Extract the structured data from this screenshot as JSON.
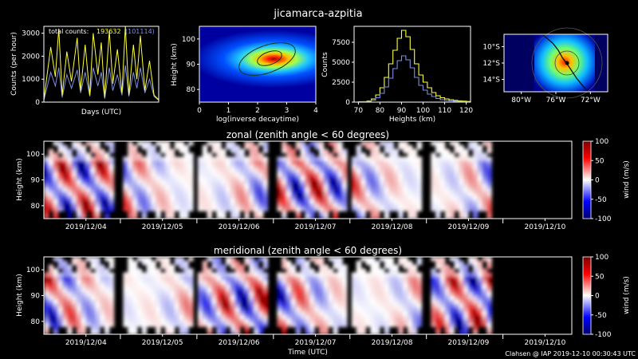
{
  "title": "jicamarca-azpitia",
  "footer": "Clahsen @ IAP 2019-12-10 00:30:43 UTC",
  "colors": {
    "background": "#000000",
    "axis": "#ffffff",
    "series_a": "#ffff3a",
    "series_b": "#7d8ee0",
    "yellow_line": "#ffff3a",
    "blue_line": "#7d8ee0"
  },
  "chart_data": [
    {
      "id": "counts",
      "type": "line",
      "xlabel": "Days (UTC)",
      "ylabel": "Counts (per hour)",
      "ylim": [
        0,
        3300
      ],
      "yticks": [
        "0",
        "1000",
        "2000",
        "3000"
      ],
      "annotation": {
        "label": "total counts:",
        "value_a": "193632",
        "value_b": "(101114)"
      },
      "series": [
        {
          "color": "#ffff3a",
          "x": [
            0,
            0.6,
            1,
            1.3,
            1.6,
            2,
            2.4,
            2.9,
            3.2,
            3.6,
            4,
            4.3,
            4.7,
            5,
            5.3,
            5.7,
            6,
            6.4,
            6.8,
            7.1,
            7.4,
            7.8,
            8.1,
            8.4,
            8.8,
            9.2,
            9.6,
            10
          ],
          "y": [
            100,
            2400,
            1100,
            3200,
            300,
            2200,
            900,
            2800,
            500,
            2500,
            300,
            3000,
            1200,
            2600,
            200,
            3100,
            800,
            2300,
            400,
            3300,
            300,
            2500,
            1000,
            2900,
            500,
            1800,
            300,
            100
          ]
        },
        {
          "color": "#7d8ee0",
          "x": [
            0,
            0.6,
            1,
            1.3,
            1.6,
            2,
            2.4,
            2.9,
            3.2,
            3.6,
            4,
            4.3,
            4.7,
            5,
            5.3,
            5.7,
            6,
            6.4,
            6.8,
            7.1,
            7.4,
            7.8,
            8.1,
            8.4,
            8.8,
            9.2,
            9.6,
            10
          ],
          "y": [
            80,
            1300,
            700,
            1500,
            200,
            1200,
            600,
            1400,
            400,
            1300,
            250,
            1500,
            700,
            1300,
            150,
            1500,
            500,
            1200,
            300,
            1600,
            250,
            1300,
            600,
            1500,
            400,
            1000,
            250,
            80
          ]
        }
      ]
    },
    {
      "id": "decay",
      "type": "heatmap",
      "xlabel": "log(inverse decaytime)",
      "ylabel": "Height (km)",
      "xlim": [
        0,
        4
      ],
      "ylim": [
        75,
        105
      ],
      "xticks": [
        "0",
        "1",
        "2",
        "3",
        "4"
      ],
      "yticks": [
        "80",
        "90",
        "100"
      ],
      "peak": {
        "x": 2.6,
        "y": 91
      }
    },
    {
      "id": "hist",
      "type": "line",
      "xlabel": "Heights (km)",
      "ylabel": "Counts",
      "xlim": [
        68,
        122
      ],
      "ylim": [
        0,
        9500
      ],
      "xticks": [
        "70",
        "80",
        "90",
        "100",
        "110",
        "120"
      ],
      "yticks": [
        "0",
        "2500",
        "5000",
        "7500"
      ],
      "bins": [
        70,
        72,
        74,
        76,
        78,
        80,
        82,
        84,
        86,
        88,
        90,
        92,
        94,
        96,
        98,
        100,
        102,
        104,
        106,
        108,
        110,
        112,
        114,
        116,
        118,
        120
      ],
      "series": [
        {
          "color": "#ffff3a",
          "values": [
            30,
            60,
            150,
            400,
            900,
            1800,
            3100,
            4800,
            6500,
            8000,
            9000,
            8200,
            6600,
            4800,
            3400,
            2500,
            1800,
            1200,
            800,
            550,
            400,
            300,
            220,
            160,
            120,
            80
          ]
        },
        {
          "color": "#7d8ee0",
          "values": [
            20,
            40,
            100,
            250,
            550,
            1100,
            1900,
            3000,
            4200,
            5200,
            5800,
            5300,
            4300,
            3100,
            2100,
            1500,
            1000,
            700,
            450,
            300,
            200,
            150,
            100,
            70,
            50,
            30
          ]
        }
      ]
    },
    {
      "id": "map",
      "type": "heatmap",
      "xticks": [
        "80°W",
        "76°W",
        "72°W"
      ],
      "yticks": [
        "10°S",
        "12°S",
        "14°S"
      ]
    },
    {
      "id": "zonal",
      "type": "heatmap",
      "title": "zonal (zenith angle < 60 degrees)",
      "ylabel": "Height (km)",
      "xlabel": "",
      "ylim": [
        75,
        105
      ],
      "yticks": [
        "80",
        "90",
        "100"
      ],
      "xticks": [
        "2019/12/04",
        "2019/12/05",
        "2019/12/06",
        "2019/12/07",
        "2019/12/08",
        "2019/12/09",
        "2019/12/10"
      ],
      "colorbar": {
        "label": "wind (m/s)",
        "ticks": [
          "100",
          "50",
          "0",
          "-50",
          "-100"
        ],
        "range": [
          -100,
          100
        ]
      }
    },
    {
      "id": "meridional",
      "type": "heatmap",
      "title": "meridional (zenith angle < 60 degrees)",
      "ylabel": "Height (km)",
      "xlabel": "Time (UTC)",
      "ylim": [
        75,
        105
      ],
      "yticks": [
        "80",
        "90",
        "100"
      ],
      "xticks": [
        "2019/12/04",
        "2019/12/05",
        "2019/12/06",
        "2019/12/07",
        "2019/12/08",
        "2019/12/09",
        "2019/12/10"
      ],
      "colorbar": {
        "label": "wind (m/s)",
        "ticks": [
          "100",
          "50",
          "0",
          "-50",
          "-100"
        ],
        "range": [
          -100,
          100
        ]
      }
    }
  ]
}
